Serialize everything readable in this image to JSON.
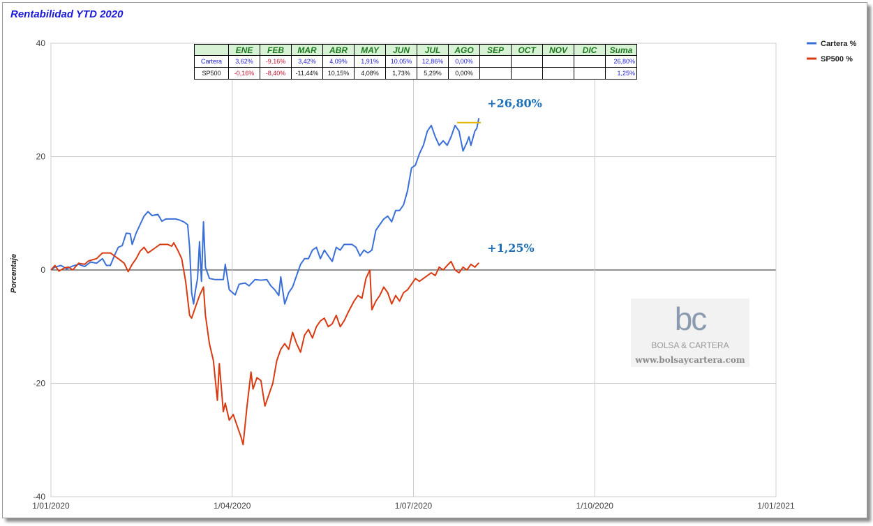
{
  "chart_data": {
    "type": "line",
    "title": "Rentabilidad YTD 2020",
    "ylabel": "Porcentaje",
    "xlabel": "",
    "ylim": [
      -40,
      40
    ],
    "yticks": [
      "40",
      "20",
      "0",
      "-20",
      "-40"
    ],
    "xticks": [
      "1/01/2020",
      "1/04/2020",
      "1/07/2020",
      "1/10/2020",
      "1/01/2021"
    ],
    "grid": true,
    "legend_position": "top-right",
    "series": [
      {
        "name": "Cartera %",
        "color": "#3a6fd8",
        "points": [
          [
            "2020-01-01",
            0
          ],
          [
            "2020-01-03",
            0.5
          ],
          [
            "2020-01-06",
            0.8
          ],
          [
            "2020-01-09",
            0.2
          ],
          [
            "2020-01-12",
            0.7
          ],
          [
            "2020-01-15",
            1.0
          ],
          [
            "2020-01-18",
            0.6
          ],
          [
            "2020-01-21",
            1.4
          ],
          [
            "2020-01-24",
            1.2
          ],
          [
            "2020-01-27",
            2.0
          ],
          [
            "2020-01-29",
            0.8
          ],
          [
            "2020-01-31",
            0.8
          ],
          [
            "2020-02-02",
            2.5
          ],
          [
            "2020-02-04",
            4.0
          ],
          [
            "2020-02-06",
            4.3
          ],
          [
            "2020-02-08",
            6.5
          ],
          [
            "2020-02-10",
            6.4
          ],
          [
            "2020-02-11",
            4.5
          ],
          [
            "2020-02-13",
            6.5
          ],
          [
            "2020-02-15",
            8.0
          ],
          [
            "2020-02-17",
            9.5
          ],
          [
            "2020-02-19",
            10.3
          ],
          [
            "2020-02-21",
            9.6
          ],
          [
            "2020-02-24",
            9.8
          ],
          [
            "2020-02-26",
            8.6
          ],
          [
            "2020-02-28",
            9.0
          ],
          [
            "2020-03-02",
            9.0
          ],
          [
            "2020-03-04",
            9.0
          ],
          [
            "2020-03-06",
            8.8
          ],
          [
            "2020-03-08",
            8.5
          ],
          [
            "2020-03-10",
            8.0
          ],
          [
            "2020-03-11",
            4.0
          ],
          [
            "2020-03-12",
            -4.0
          ],
          [
            "2020-03-13",
            -6.0
          ],
          [
            "2020-03-14",
            -3.5
          ],
          [
            "2020-03-15",
            -1.5
          ],
          [
            "2020-03-16",
            5.0
          ],
          [
            "2020-03-17",
            -2.0
          ],
          [
            "2020-03-18",
            8.5
          ],
          [
            "2020-03-19",
            0.5
          ],
          [
            "2020-03-21",
            -1.5
          ],
          [
            "2020-03-24",
            -1.7
          ],
          [
            "2020-03-28",
            -1.7
          ],
          [
            "2020-03-29",
            1.0
          ],
          [
            "2020-03-31",
            -3.5
          ],
          [
            "2020-04-03",
            -4.4
          ],
          [
            "2020-04-05",
            -2.5
          ],
          [
            "2020-04-08",
            -2.3
          ],
          [
            "2020-04-10",
            -2.8
          ],
          [
            "2020-04-13",
            -1.7
          ],
          [
            "2020-04-16",
            -1.8
          ],
          [
            "2020-04-19",
            -1.7
          ],
          [
            "2020-04-21",
            -2.8
          ],
          [
            "2020-04-23",
            -3.5
          ],
          [
            "2020-04-25",
            -4.5
          ],
          [
            "2020-04-26",
            -1.2
          ],
          [
            "2020-04-28",
            -6.0
          ],
          [
            "2020-04-30",
            -4.0
          ],
          [
            "2020-05-02",
            -3.0
          ],
          [
            "2020-05-04",
            -1.0
          ],
          [
            "2020-05-06",
            1.0
          ],
          [
            "2020-05-08",
            2.0
          ],
          [
            "2020-05-10",
            2.0
          ],
          [
            "2020-05-12",
            3.5
          ],
          [
            "2020-05-14",
            4.0
          ],
          [
            "2020-05-16",
            2.0
          ],
          [
            "2020-05-18",
            3.5
          ],
          [
            "2020-05-20",
            2.5
          ],
          [
            "2020-05-22",
            1.5
          ],
          [
            "2020-05-24",
            4.0
          ],
          [
            "2020-05-26",
            3.5
          ],
          [
            "2020-05-28",
            4.5
          ],
          [
            "2020-06-01",
            4.5
          ],
          [
            "2020-06-03",
            4.0
          ],
          [
            "2020-06-05",
            2.5
          ],
          [
            "2020-06-07",
            3.5
          ],
          [
            "2020-06-09",
            3.0
          ],
          [
            "2020-06-11",
            3.5
          ],
          [
            "2020-06-13",
            7.0
          ],
          [
            "2020-06-15",
            8.0
          ],
          [
            "2020-06-17",
            9.0
          ],
          [
            "2020-06-19",
            9.5
          ],
          [
            "2020-06-21",
            8.5
          ],
          [
            "2020-06-23",
            10.5
          ],
          [
            "2020-06-25",
            10.5
          ],
          [
            "2020-06-27",
            11.5
          ],
          [
            "2020-06-29",
            14.0
          ],
          [
            "2020-07-01",
            18.0
          ],
          [
            "2020-07-03",
            18.5
          ],
          [
            "2020-07-05",
            20.5
          ],
          [
            "2020-07-07",
            22.0
          ],
          [
            "2020-07-09",
            24.5
          ],
          [
            "2020-07-11",
            25.5
          ],
          [
            "2020-07-13",
            23.5
          ],
          [
            "2020-07-15",
            22.0
          ],
          [
            "2020-07-17",
            22.8
          ],
          [
            "2020-07-19",
            22.0
          ],
          [
            "2020-07-21",
            23.5
          ],
          [
            "2020-07-23",
            25.5
          ],
          [
            "2020-07-25",
            24.5
          ],
          [
            "2020-07-27",
            21.0
          ],
          [
            "2020-07-29",
            22.5
          ],
          [
            "2020-07-30",
            23.5
          ],
          [
            "2020-07-31",
            22.0
          ],
          [
            "2020-08-02",
            24.5
          ],
          [
            "2020-08-03",
            25.0
          ],
          [
            "2020-08-04",
            26.8
          ]
        ]
      },
      {
        "name": "SP500 %",
        "color": "#d83a12",
        "points": [
          [
            "2020-01-01",
            0
          ],
          [
            "2020-01-03",
            0.8
          ],
          [
            "2020-01-05",
            -0.2
          ],
          [
            "2020-01-08",
            0.4
          ],
          [
            "2020-01-10",
            0.5
          ],
          [
            "2020-01-12",
            0.0
          ],
          [
            "2020-01-15",
            1.2
          ],
          [
            "2020-01-18",
            1.0
          ],
          [
            "2020-01-20",
            1.6
          ],
          [
            "2020-01-24",
            2.0
          ],
          [
            "2020-01-27",
            3.0
          ],
          [
            "2020-01-31",
            3.0
          ],
          [
            "2020-02-02",
            2.5
          ],
          [
            "2020-02-04",
            2.0
          ],
          [
            "2020-02-07",
            1.2
          ],
          [
            "2020-02-09",
            -0.3
          ],
          [
            "2020-02-11",
            1.0
          ],
          [
            "2020-02-13",
            2.0
          ],
          [
            "2020-02-15",
            3.3
          ],
          [
            "2020-02-17",
            4.0
          ],
          [
            "2020-02-19",
            3.0
          ],
          [
            "2020-02-21",
            3.5
          ],
          [
            "2020-02-23",
            4.0
          ],
          [
            "2020-02-25",
            4.5
          ],
          [
            "2020-02-27",
            4.5
          ],
          [
            "2020-02-29",
            4.5
          ],
          [
            "2020-03-02",
            4.2
          ],
          [
            "2020-03-03",
            4.8
          ],
          [
            "2020-03-05",
            3.5
          ],
          [
            "2020-03-07",
            2.0
          ],
          [
            "2020-03-09",
            -2.0
          ],
          [
            "2020-03-11",
            -8.0
          ],
          [
            "2020-03-12",
            -8.5
          ],
          [
            "2020-03-14",
            -6.5
          ],
          [
            "2020-03-16",
            -4.5
          ],
          [
            "2020-03-18",
            -3.0
          ],
          [
            "2020-03-19",
            -8.0
          ],
          [
            "2020-03-21",
            -13.0
          ],
          [
            "2020-03-23",
            -16.0
          ],
          [
            "2020-03-25",
            -23.0
          ],
          [
            "2020-03-26",
            -16.5
          ],
          [
            "2020-03-28",
            -25.0
          ],
          [
            "2020-03-29",
            -23.5
          ],
          [
            "2020-03-31",
            -26.5
          ],
          [
            "2020-04-02",
            -25.5
          ],
          [
            "2020-04-04",
            -27.5
          ],
          [
            "2020-04-06",
            -29.5
          ],
          [
            "2020-04-07",
            -30.8
          ],
          [
            "2020-04-09",
            -24.0
          ],
          [
            "2020-04-11",
            -18.0
          ],
          [
            "2020-04-12",
            -21.0
          ],
          [
            "2020-04-14",
            -19.0
          ],
          [
            "2020-04-16",
            -19.5
          ],
          [
            "2020-04-18",
            -24.0
          ],
          [
            "2020-04-20",
            -22.0
          ],
          [
            "2020-04-22",
            -20.0
          ],
          [
            "2020-04-24",
            -16.0
          ],
          [
            "2020-04-26",
            -14.0
          ],
          [
            "2020-04-28",
            -13.0
          ],
          [
            "2020-04-30",
            -14.0
          ],
          [
            "2020-05-02",
            -11.0
          ],
          [
            "2020-05-04",
            -13.0
          ],
          [
            "2020-05-06",
            -14.5
          ],
          [
            "2020-05-08",
            -11.5
          ],
          [
            "2020-05-10",
            -10.5
          ],
          [
            "2020-05-12",
            -12.0
          ],
          [
            "2020-05-14",
            -10.0
          ],
          [
            "2020-05-16",
            -9.0
          ],
          [
            "2020-05-18",
            -8.5
          ],
          [
            "2020-05-20",
            -10.0
          ],
          [
            "2020-05-22",
            -9.5
          ],
          [
            "2020-05-24",
            -8.0
          ],
          [
            "2020-05-26",
            -10.0
          ],
          [
            "2020-05-28",
            -9.0
          ],
          [
            "2020-05-30",
            -7.5
          ],
          [
            "2020-06-02",
            -5.5
          ],
          [
            "2020-06-04",
            -4.5
          ],
          [
            "2020-06-06",
            -5.0
          ],
          [
            "2020-06-08",
            -1.5
          ],
          [
            "2020-06-10",
            0.0
          ],
          [
            "2020-06-11",
            -7.0
          ],
          [
            "2020-06-13",
            -5.5
          ],
          [
            "2020-06-15",
            -4.5
          ],
          [
            "2020-06-17",
            -3.0
          ],
          [
            "2020-06-19",
            -4.0
          ],
          [
            "2020-06-21",
            -6.0
          ],
          [
            "2020-06-23",
            -4.5
          ],
          [
            "2020-06-25",
            -5.5
          ],
          [
            "2020-06-27",
            -4.0
          ],
          [
            "2020-06-29",
            -3.5
          ],
          [
            "2020-07-01",
            -2.5
          ],
          [
            "2020-07-03",
            -1.5
          ],
          [
            "2020-07-05",
            -2.0
          ],
          [
            "2020-07-07",
            -1.5
          ],
          [
            "2020-07-09",
            -1.0
          ],
          [
            "2020-07-11",
            -0.5
          ],
          [
            "2020-07-13",
            -1.0
          ],
          [
            "2020-07-15",
            0.5
          ],
          [
            "2020-07-17",
            0.0
          ],
          [
            "2020-07-19",
            0.8
          ],
          [
            "2020-07-21",
            1.5
          ],
          [
            "2020-07-23",
            0.0
          ],
          [
            "2020-07-25",
            -0.5
          ],
          [
            "2020-07-27",
            0.5
          ],
          [
            "2020-07-29",
            0.0
          ],
          [
            "2020-07-31",
            1.0
          ],
          [
            "2020-08-02",
            0.5
          ],
          [
            "2020-08-04",
            1.25
          ]
        ]
      }
    ],
    "annotations": [
      {
        "text": "+26,80%",
        "series": "Cartera %"
      },
      {
        "text": "+1,25%",
        "series": "SP500 %"
      }
    ],
    "reference_line": {
      "color": "#e5b400",
      "y": 26.0,
      "x_start": "2020-07-24",
      "x_end": "2020-08-05"
    },
    "table": {
      "header": [
        "ENE",
        "FEB",
        "MAR",
        "ABR",
        "MAY",
        "JUN",
        "JUL",
        "AGO",
        "SEP",
        "OCT",
        "NOV",
        "DIC",
        "Suma"
      ],
      "rows": [
        {
          "name": "Cartera",
          "values": [
            "3,62%",
            "-9,16%",
            "3,42%",
            "4,09%",
            "1,91%",
            "10,05%",
            "12,86%",
            "0,00%",
            "",
            "",
            "",
            "",
            "26,80%"
          ],
          "colors": [
            "blue",
            "red",
            "blue",
            "blue",
            "blue",
            "blue",
            "blue",
            "blue",
            "blue",
            "blue",
            "blue",
            "blue",
            "blue"
          ]
        },
        {
          "name": "SP500",
          "values": [
            "-0,16%",
            "-8,40%",
            "-11,44%",
            "10,15%",
            "4,08%",
            "1,73%",
            "5,29%",
            "0,00%",
            "",
            "",
            "",
            "",
            "1,25%"
          ],
          "colors": [
            "red",
            "red",
            "black",
            "black",
            "black",
            "black",
            "black",
            "black",
            "black",
            "black",
            "black",
            "black",
            "blue"
          ]
        }
      ]
    }
  },
  "watermark": {
    "logo": "bc",
    "name": "BOLSA & CARTERA",
    "url": "www.bolsaycartera.com"
  }
}
